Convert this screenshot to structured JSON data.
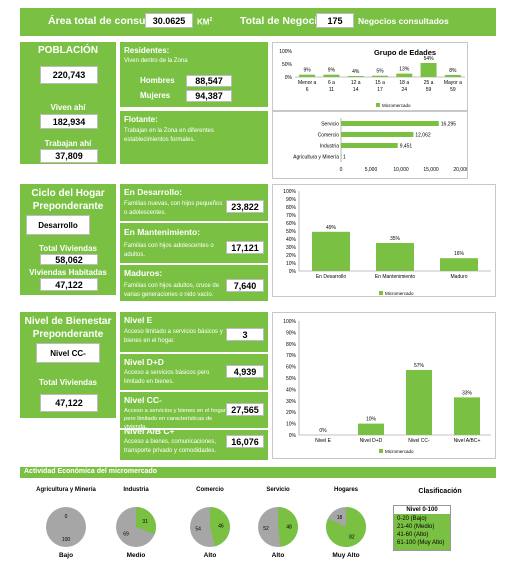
{
  "header": {
    "area_label": "Área total de consulta",
    "area_value": "30.0625",
    "area_unit": "KM",
    "area_unit_sup": "2",
    "total_label": "Total de Negocios",
    "total_value": "175",
    "total_suffix": "Negocios consultados"
  },
  "poblacion": {
    "title": "POBLACIÓN",
    "total": "220,743",
    "viven_label": "Viven ahí",
    "viven_value": "182,934",
    "trabajan_label": "Trabajan ahí",
    "trabajan_value": "37,809"
  },
  "residentes": {
    "title": "Residentes:",
    "desc": "Viven dentro de la Zona",
    "hombres_label": "Hombres",
    "hombres_value": "88,547",
    "mujeres_label": "Mujeres",
    "mujeres_value": "94,387"
  },
  "flotante": {
    "title": "Flotante:",
    "desc": "Trabajan en la Zona en diferentes establecimientos formales."
  },
  "ciclo": {
    "title": "Ciclo del Hogar Preponderante",
    "value": "Desarrollo",
    "total_label": "Total Viviendas",
    "total_value": "58,062",
    "habitadas_label": "Viviendas Habitadas",
    "habitadas_value": "47,122"
  },
  "ciclo_items": [
    {
      "title": "En Desarrollo:",
      "desc": "Familias nuevas, con hijos pequeños o adolescentes.",
      "value": "23,822"
    },
    {
      "title": "En Mantenimiento:",
      "desc": "Familias con hijos adolescentes o adultos.",
      "value": "17,121"
    },
    {
      "title": "Maduros:",
      "desc": "Familias con hijos adultos, cruce de varias generaciones o nido vacío.",
      "value": "7,640"
    }
  ],
  "bienestar": {
    "title": "Nivel de Bienestar Preponderante",
    "value": "Nivel CC-",
    "total_label": "Total Viviendas",
    "total_value": "47,122"
  },
  "bienestar_items": [
    {
      "title": "Nivel E",
      "desc": "Acceso limitado a servicios básicos y bienes en el hogar.",
      "value": "3"
    },
    {
      "title": "Nivel D+D",
      "desc": "Acceso a servicios básicos pero limitado en bienes.",
      "value": "4,939"
    },
    {
      "title": "Nivel CC-",
      "desc": "Acceso a servicios y bienes en el hogar pero limitado en características de vivienda.",
      "value": "27,565"
    },
    {
      "title": "Nivel A/B C+",
      "desc": "Acceso a bienes, comunicaciones, transporte privado y comodidades.",
      "value": "16,076"
    }
  ],
  "actividad": {
    "title": "Actividad Económica del micromercado"
  },
  "pies": [
    {
      "name": "Agricultura y Minería",
      "level": "Bajo",
      "green": 0,
      "gray": 100
    },
    {
      "name": "Industria",
      "level": "Medio",
      "green": 31,
      "gray": 69
    },
    {
      "name": "Comercio",
      "level": "Alto",
      "green": 46,
      "gray": 54
    },
    {
      "name": "Servicio",
      "level": "Alto",
      "green": 48,
      "gray": 52
    },
    {
      "name": "Hogares",
      "level": "Muy Alto",
      "green": 82,
      "gray": 18
    }
  ],
  "clasificacion": {
    "title": "Clasificación",
    "header": "Nivel 0-100",
    "rows": [
      "0-20 (Bajo)",
      "21-40 (Medio)",
      "41-60 (Alto)",
      "61-100 (Muy Alto)"
    ]
  },
  "colors": {
    "green": "#7ac143",
    "gray": "#a6a6a6"
  },
  "chart_data": [
    {
      "type": "bar",
      "title": "Grupo de Edades",
      "categories": [
        "Menor a 6",
        "6 a 11",
        "12 a 14",
        "15 a 17",
        "18 a 24",
        "25 a 59",
        "Mayor a 59"
      ],
      "values": [
        9,
        9,
        4,
        5,
        13,
        54,
        8
      ],
      "labels": [
        "9%",
        "9%",
        "4%",
        "5%",
        "13%",
        "54%",
        "8%"
      ],
      "ylim": [
        0,
        100
      ],
      "yticks": [
        "0%",
        "50%",
        "100%"
      ],
      "legend": "Micromercado"
    },
    {
      "type": "bar",
      "orientation": "horizontal",
      "categories": [
        "Servicio",
        "Comercio",
        "Industria",
        "Agricultura y Minería"
      ],
      "values": [
        16295,
        12062,
        9451,
        1
      ],
      "labels": [
        "16,295",
        "12,062",
        "9,451",
        "1"
      ],
      "xlim": [
        0,
        20000
      ],
      "xticks": [
        "0",
        "5,000",
        "10,000",
        "15,000",
        "20,000"
      ]
    },
    {
      "type": "bar",
      "categories": [
        "En Desarrollo",
        "En Mantenimiento",
        "Maduro"
      ],
      "values": [
        49,
        35,
        16
      ],
      "labels": [
        "49%",
        "35%",
        "16%"
      ],
      "ylim": [
        0,
        100
      ],
      "yticks": [
        "0%",
        "10%",
        "20%",
        "30%",
        "40%",
        "50%",
        "60%",
        "70%",
        "80%",
        "90%",
        "100%"
      ],
      "legend": "Micromercado"
    },
    {
      "type": "bar",
      "categories": [
        "Nivel E",
        "Nivel D+D",
        "Nivel CC-",
        "Nivel A/BC+"
      ],
      "values": [
        0,
        10,
        57,
        33
      ],
      "labels": [
        "0%",
        "10%",
        "57%",
        "33%"
      ],
      "ylim": [
        0,
        100
      ],
      "yticks": [
        "0%",
        "10%",
        "20%",
        "30%",
        "40%",
        "50%",
        "60%",
        "70%",
        "80%",
        "90%",
        "100%"
      ],
      "legend": "Micromercado"
    }
  ]
}
